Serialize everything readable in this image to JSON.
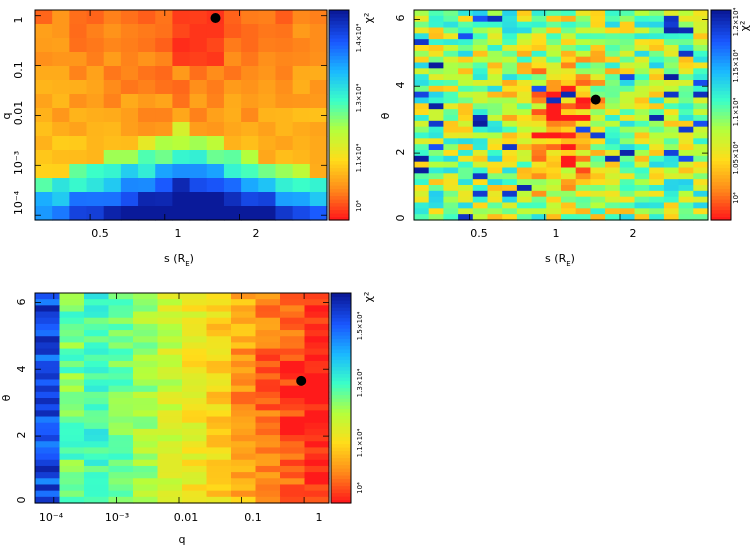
{
  "colormap": [
    "#ff1a1a",
    "#ff8c1a",
    "#ffdd1a",
    "#b5ff3b",
    "#3bffc8",
    "#1ab8ff",
    "#1a57ff",
    "#0a1a9a"
  ],
  "chart_data": [
    {
      "type": "heatmap",
      "xlabel": "s (R_E)",
      "ylabel": "q",
      "x_ticks": [
        "0.5",
        "1",
        "2"
      ],
      "y_ticks": [
        "10⁻⁴",
        "10⁻³",
        "0.01",
        "0.1",
        "1"
      ],
      "xlim": [
        0.3,
        4.5
      ],
      "ylim": [
        8e-05,
        1.3
      ],
      "x_scale": "log",
      "y_scale": "log",
      "colorbar_label": "χ²",
      "colorbar_ticks": [
        "10⁴",
        "1.1×10⁴",
        "1.3×10⁴",
        "1.4×10⁴"
      ],
      "best_fit": {
        "x": 1.6,
        "y": 0.9
      },
      "grid": {
        "cols": 17,
        "rows": 15,
        "pattern": "q-dome"
      }
    },
    {
      "type": "heatmap",
      "xlabel": "s (R_E)",
      "ylabel": "θ",
      "x_ticks": [
        "0.5",
        "1",
        "2"
      ],
      "y_ticks": [
        "0",
        "2",
        "4",
        "6"
      ],
      "xlim": [
        0.3,
        4.5
      ],
      "ylim": [
        0,
        6.28
      ],
      "x_scale": "log",
      "y_scale": "linear",
      "colorbar_label": "χ²",
      "colorbar_ticks": [
        "10⁴",
        "1.05×10⁴",
        "1.1×10⁴",
        "1.15×10⁴",
        "1.2×10⁴"
      ],
      "best_fit": {
        "x": 1.6,
        "y": 3.6
      },
      "grid": {
        "cols": 20,
        "rows": 36,
        "pattern": "s-band"
      }
    },
    {
      "type": "heatmap",
      "xlabel": "q",
      "ylabel": "θ",
      "x_ticks": [
        "10⁻⁴",
        "10⁻³",
        "0.01",
        "0.1",
        "1"
      ],
      "y_ticks": [
        "0",
        "2",
        "4",
        "6"
      ],
      "xlim": [
        5e-05,
        2.5
      ],
      "ylim": [
        0,
        6.28
      ],
      "x_scale": "log",
      "y_scale": "linear",
      "colorbar_label": "χ²",
      "colorbar_ticks": [
        "10⁴",
        "1.1×10⁴",
        "1.3×10⁴",
        "1.5×10⁴"
      ],
      "best_fit": {
        "x": 0.9,
        "y": 3.65
      },
      "grid": {
        "cols": 12,
        "rows": 34,
        "pattern": "q-gradient"
      }
    }
  ]
}
